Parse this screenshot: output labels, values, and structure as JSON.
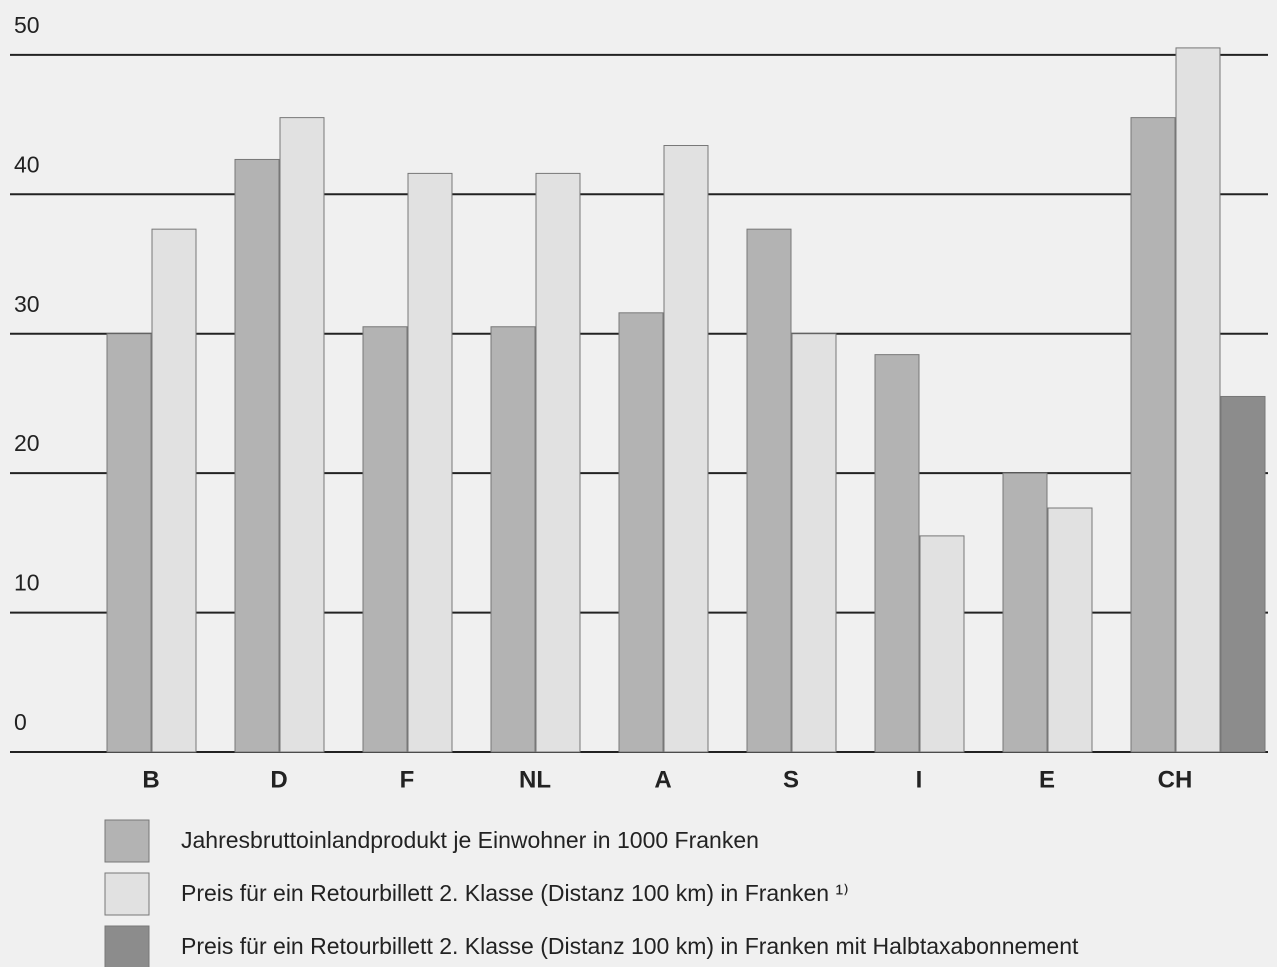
{
  "chart_data": {
    "type": "bar",
    "categories": [
      "B",
      "D",
      "F",
      "NL",
      "A",
      "S",
      "I",
      "E",
      "CH"
    ],
    "series": [
      {
        "name": "Jahresbruttoinlandprodukt je Einwohner in 1000 Franken",
        "color": "#b3b3b3",
        "values": [
          30,
          42.5,
          30.5,
          30.5,
          31.5,
          37.5,
          28.5,
          20,
          45.5
        ]
      },
      {
        "name": "Preis für ein Retourbillett 2. Klasse (Distanz 100 km) in Franken ¹⁾",
        "color": "#e1e1e1",
        "values": [
          37.5,
          45.5,
          41.5,
          41.5,
          43.5,
          30,
          15.5,
          17.5,
          50.5
        ]
      },
      {
        "name": "Preis für ein Retourbillett 2. Klasse (Distanz 100 km) in Franken mit Halbtaxabonnement",
        "color": "#8c8c8c",
        "values": [
          null,
          null,
          null,
          null,
          null,
          null,
          null,
          null,
          25.5
        ]
      }
    ],
    "ylim": [
      0,
      52
    ],
    "yticks": [
      0,
      10,
      20,
      30,
      40,
      50
    ],
    "grid": true
  }
}
